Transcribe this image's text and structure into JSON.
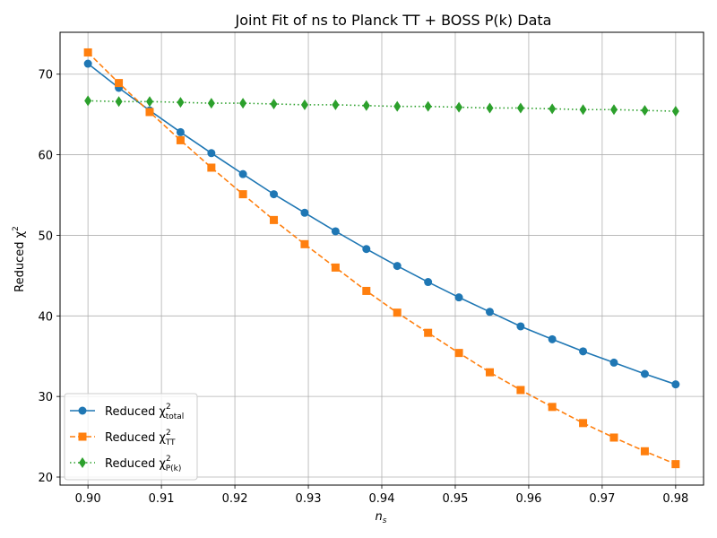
{
  "chart_data": {
    "type": "line",
    "title": "Joint Fit of ns to Planck TT + BOSS P(k) Data",
    "xlabel": "n",
    "xlabel_sub": "s",
    "ylabel": "Reduced χ",
    "ylabel_sup": "2",
    "xlim": [
      0.8962,
      0.9838
    ],
    "ylim": [
      19.0,
      75.2
    ],
    "xticks": [
      0.9,
      0.91,
      0.92,
      0.93,
      0.94,
      0.95,
      0.96,
      0.97,
      0.98
    ],
    "xtick_labels": [
      "0.90",
      "0.91",
      "0.92",
      "0.93",
      "0.94",
      "0.95",
      "0.96",
      "0.97",
      "0.98"
    ],
    "yticks": [
      20,
      30,
      40,
      50,
      60,
      70
    ],
    "ytick_labels": [
      "20",
      "30",
      "40",
      "50",
      "60",
      "70"
    ],
    "grid": true,
    "legend_position": "lower-left",
    "x": [
      0.9,
      0.9042,
      0.9084,
      0.9126,
      0.9168,
      0.9211,
      0.9253,
      0.9295,
      0.9337,
      0.9379,
      0.9421,
      0.9463,
      0.9505,
      0.9547,
      0.9589,
      0.9632,
      0.9674,
      0.9716,
      0.9758,
      0.98
    ],
    "series": [
      {
        "name": "Reduced χ",
        "name_sup": "2",
        "name_sub": "total",
        "color": "#1f77b4",
        "linestyle": "solid",
        "marker": "circle",
        "values": [
          71.3,
          68.3,
          65.5,
          62.8,
          60.2,
          57.6,
          55.1,
          52.8,
          50.5,
          48.3,
          46.2,
          44.2,
          42.3,
          40.5,
          38.7,
          37.1,
          35.6,
          34.2,
          32.8,
          31.5
        ]
      },
      {
        "name": "Reduced χ",
        "name_sup": "2",
        "name_sub": "TT",
        "color": "#ff7f0e",
        "linestyle": "dashed",
        "marker": "square",
        "values": [
          72.7,
          68.9,
          65.3,
          61.8,
          58.4,
          55.1,
          51.9,
          48.9,
          46.0,
          43.1,
          40.4,
          37.9,
          35.4,
          33.0,
          30.8,
          28.7,
          26.7,
          24.9,
          23.2,
          21.6
        ]
      },
      {
        "name": "Reduced χ",
        "name_sup": "2",
        "name_sub": "P(k)",
        "color": "#2ca02c",
        "linestyle": "dotted",
        "marker": "diamond",
        "values": [
          66.7,
          66.6,
          66.6,
          66.5,
          66.4,
          66.4,
          66.3,
          66.2,
          66.2,
          66.1,
          66.0,
          66.0,
          65.9,
          65.8,
          65.8,
          65.7,
          65.6,
          65.6,
          65.5,
          65.4
        ]
      }
    ]
  }
}
